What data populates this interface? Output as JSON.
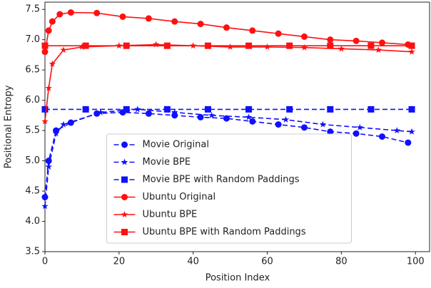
{
  "chart_data": {
    "type": "line",
    "xlabel": "Position Index",
    "ylabel": "Positional Entropy",
    "xlim": [
      0,
      104
    ],
    "ylim": [
      3.5,
      7.62
    ],
    "xticks": [
      0,
      20,
      40,
      60,
      80,
      100
    ],
    "yticks": [
      3.5,
      {
        "value": 4,
        "label": "4.0"
      },
      4.5,
      {
        "value": 5,
        "label": "5.0"
      },
      5.5,
      {
        "value": 6,
        "label": "6.0"
      },
      6.5,
      {
        "value": 7,
        "label": "7.0"
      },
      7.5
    ],
    "grid": false,
    "legend": "lower center",
    "series": [
      {
        "name": "Movie Original",
        "color": "#1010ff",
        "linestyle": "dashed",
        "marker": "circle",
        "x": [
          0,
          1,
          3,
          7,
          14,
          21,
          28,
          35,
          42,
          49,
          56,
          63,
          70,
          77,
          84,
          91,
          98
        ],
        "values": [
          4.4,
          5.0,
          5.5,
          5.63,
          5.78,
          5.8,
          5.78,
          5.75,
          5.72,
          5.7,
          5.65,
          5.6,
          5.55,
          5.48,
          5.45,
          5.4,
          5.3
        ]
      },
      {
        "name": "Movie BPE",
        "color": "#1010ff",
        "linestyle": "dashed",
        "marker": "star",
        "x": [
          0,
          1,
          3,
          5,
          15,
          25,
          35,
          45,
          55,
          65,
          75,
          85,
          95,
          99
        ],
        "values": [
          4.25,
          4.9,
          5.45,
          5.6,
          5.8,
          5.85,
          5.8,
          5.75,
          5.72,
          5.68,
          5.6,
          5.55,
          5.5,
          5.48
        ]
      },
      {
        "name": "Movie BPE with Random Paddings",
        "color": "#1010ff",
        "linestyle": "dashed",
        "marker": "square",
        "x": [
          0,
          11,
          22,
          33,
          44,
          55,
          66,
          77,
          88,
          99
        ],
        "values": [
          5.85,
          5.85,
          5.85,
          5.85,
          5.85,
          5.85,
          5.85,
          5.85,
          5.85,
          5.85
        ]
      },
      {
        "name": "Ubuntu Original",
        "color": "#ff1010",
        "linestyle": "solid",
        "marker": "circle",
        "x": [
          0,
          1,
          2,
          4,
          7,
          14,
          21,
          28,
          35,
          42,
          49,
          56,
          63,
          70,
          77,
          84,
          91,
          98
        ],
        "values": [
          6.8,
          7.15,
          7.3,
          7.42,
          7.45,
          7.44,
          7.38,
          7.35,
          7.3,
          7.26,
          7.2,
          7.15,
          7.1,
          7.05,
          7.0,
          6.98,
          6.95,
          6.92
        ]
      },
      {
        "name": "Ubuntu BPE",
        "color": "#ff1010",
        "linestyle": "solid",
        "marker": "star",
        "x": [
          0,
          1,
          2,
          5,
          10,
          20,
          30,
          40,
          50,
          60,
          70,
          80,
          90,
          99
        ],
        "values": [
          5.65,
          6.2,
          6.6,
          6.83,
          6.88,
          6.9,
          6.92,
          6.9,
          6.88,
          6.88,
          6.87,
          6.85,
          6.83,
          6.8
        ]
      },
      {
        "name": "Ubuntu BPE with Random Paddings",
        "color": "#ff1010",
        "linestyle": "solid",
        "marker": "square",
        "x": [
          0,
          11,
          22,
          33,
          44,
          55,
          66,
          77,
          88,
          99
        ],
        "values": [
          6.9,
          6.9,
          6.9,
          6.9,
          6.9,
          6.9,
          6.9,
          6.9,
          6.9,
          6.9
        ]
      }
    ]
  }
}
